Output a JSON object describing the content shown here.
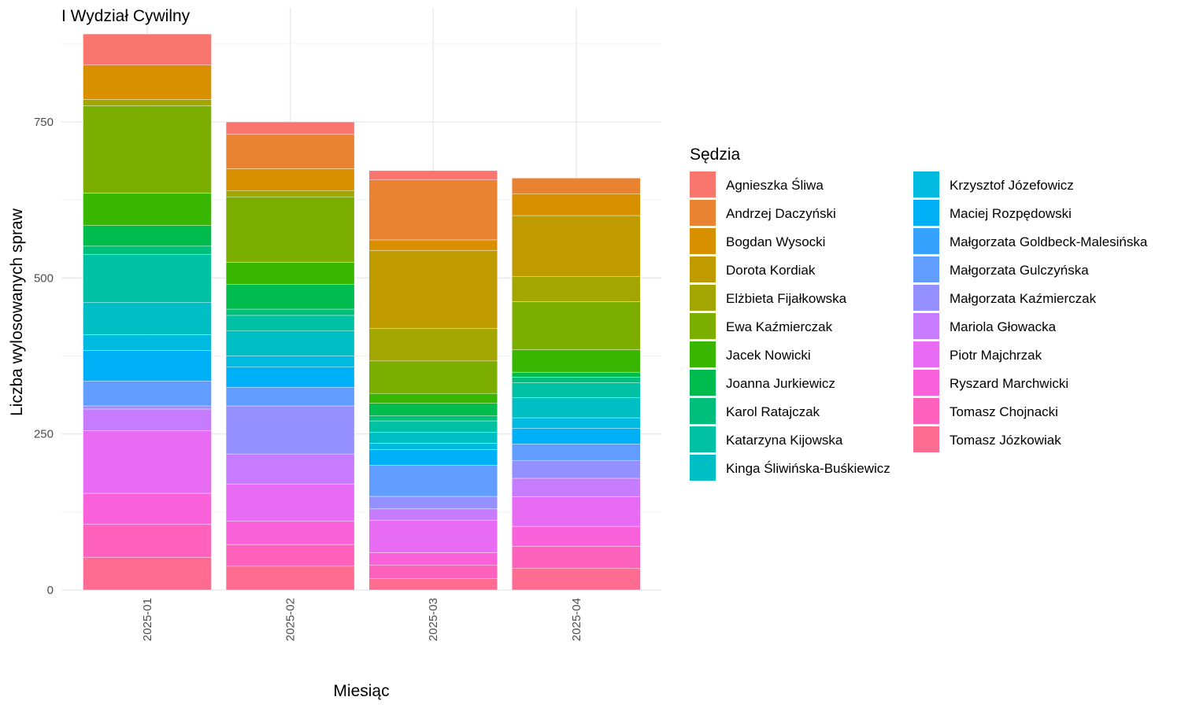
{
  "chart_data": {
    "type": "bar",
    "stacked": true,
    "title": "I Wydział Cywilny",
    "xlabel": "Miesiąc",
    "ylabel": "Liczba wylosowanych spraw",
    "categories": [
      "2025-01",
      "2025-02",
      "2025-03",
      "2025-04"
    ],
    "ylim": [
      0,
      900
    ],
    "yticks": [
      0,
      250,
      500,
      750
    ],
    "grid": true,
    "legend": {
      "title": "Sędzia",
      "position": "right",
      "columns": 2
    },
    "series": [
      {
        "name": "Agnieszka Śliwa",
        "color": "#F8766D",
        "values": [
          50,
          20,
          15,
          0
        ]
      },
      {
        "name": "Andrzej Daczyński",
        "color": "#EA8331",
        "values": [
          0,
          55,
          96,
          25
        ]
      },
      {
        "name": "Bogdan Wysocki",
        "color": "#D89000",
        "values": [
          55,
          35,
          17,
          35
        ]
      },
      {
        "name": "Dorota Kordiak",
        "color": "#C09B00",
        "values": [
          0,
          0,
          125,
          98
        ]
      },
      {
        "name": "Elżbieta Fijałkowska",
        "color": "#A3A500",
        "values": [
          10,
          10,
          52,
          40
        ]
      },
      {
        "name": "Ewa Kaźmierczak",
        "color": "#7CAE00",
        "values": [
          140,
          105,
          52,
          77
        ]
      },
      {
        "name": "Jacek Nowicki",
        "color": "#39B600",
        "values": [
          52,
          35,
          16,
          36
        ]
      },
      {
        "name": "Joanna Jurkiewicz",
        "color": "#00BB4E",
        "values": [
          33,
          40,
          20,
          8
        ]
      },
      {
        "name": "Karol Ratajczak",
        "color": "#00BF7D",
        "values": [
          13,
          10,
          8,
          9
        ]
      },
      {
        "name": "Katarzyna Kijowska",
        "color": "#00C1A3",
        "values": [
          77,
          25,
          18,
          24
        ]
      },
      {
        "name": "Kinga Śliwińska-Buśkiewicz",
        "color": "#00BFC4",
        "values": [
          52,
          40,
          18,
          32
        ]
      },
      {
        "name": "Krzysztof Józefowicz",
        "color": "#00BAE0",
        "values": [
          25,
          18,
          10,
          17
        ]
      },
      {
        "name": "Maciej Rozpędowski",
        "color": "#00B0F6",
        "values": [
          49,
          32,
          25,
          25
        ]
      },
      {
        "name": "Małgorzata Goldbeck-Malesińska",
        "color": "#35A2FF",
        "values": [
          0,
          0,
          0,
          0
        ]
      },
      {
        "name": "Małgorzata Gulczyńska",
        "color": "#619CFF",
        "values": [
          40,
          30,
          50,
          27
        ]
      },
      {
        "name": "Małgorzata Kaźmierczak",
        "color": "#9590FF",
        "values": [
          5,
          77,
          20,
          28
        ]
      },
      {
        "name": "Mariola Głowacka",
        "color": "#C77CFF",
        "values": [
          35,
          48,
          18,
          30
        ]
      },
      {
        "name": "Piotr Majchrzak",
        "color": "#E76BF3",
        "values": [
          100,
          60,
          52,
          47
        ]
      },
      {
        "name": "Ryszard Marchwicki",
        "color": "#FA62DB",
        "values": [
          50,
          37,
          20,
          32
        ]
      },
      {
        "name": "Tomasz Chojnacki",
        "color": "#FF62BC",
        "values": [
          53,
          35,
          22,
          35
        ]
      },
      {
        "name": "Tomasz Józkowiak",
        "color": "#FF6C91",
        "values": [
          52,
          38,
          18,
          35
        ]
      }
    ]
  }
}
